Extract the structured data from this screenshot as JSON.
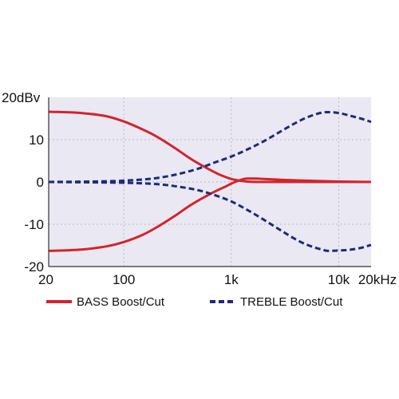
{
  "colors": {
    "plot_background": "#e9e8f3",
    "grid": "#b8b8c0",
    "axis": "#333333",
    "bass": "#d4242c",
    "treble": "#1f2a7a"
  },
  "chart_data": {
    "type": "line",
    "title": "",
    "xlabel": "",
    "ylabel": "",
    "x_scale": "log",
    "xlim": [
      20,
      20000
    ],
    "ylim": [
      -20,
      20
    ],
    "grid": true,
    "legend_position": "bottom",
    "x_ticks": [
      {
        "value": 20,
        "label": "20"
      },
      {
        "value": 100,
        "label": "100"
      },
      {
        "value": 1000,
        "label": "1k"
      },
      {
        "value": 10000,
        "label": "10k"
      },
      {
        "value": 20000,
        "label": "20kHz"
      }
    ],
    "y_ticks": [
      {
        "value": 20,
        "label": "20dBv"
      },
      {
        "value": 10,
        "label": "10"
      },
      {
        "value": 0,
        "label": "0"
      },
      {
        "value": -10,
        "label": "-10"
      },
      {
        "value": -20,
        "label": "-20"
      }
    ],
    "series": [
      {
        "name": "BASS Boost/Cut",
        "style": "solid",
        "color": "#d4242c",
        "curves": [
          {
            "x": [
              20,
              40,
              70,
              100,
              150,
              200,
              300,
              400,
              500,
              600,
              700,
              800,
              900,
              1000,
              1200,
              1400,
              1700,
              2000,
              3000,
              5000,
              10000,
              20000
            ],
            "y": [
              16.6,
              16.3,
              15.5,
              14.3,
              12.4,
              10.8,
              8.0,
              5.8,
              4.3,
              3.2,
              2.3,
              1.6,
              1.1,
              0.7,
              0.3,
              0.1,
              0.0,
              0.0,
              0.0,
              0.0,
              0.0,
              0.0
            ]
          },
          {
            "x": [
              20,
              40,
              70,
              100,
              150,
              200,
              300,
              400,
              500,
              600,
              700,
              800,
              900,
              1000,
              1200,
              1400,
              1700,
              2000,
              3000,
              5000,
              10000,
              20000
            ],
            "y": [
              -16.3,
              -16.0,
              -15.2,
              -14.2,
              -12.5,
              -10.8,
              -8.0,
              -5.8,
              -4.3,
              -3.2,
              -2.3,
              -1.6,
              -1.0,
              -0.4,
              0.4,
              0.8,
              0.8,
              0.7,
              0.5,
              0.3,
              0.1,
              0.0
            ]
          }
        ]
      },
      {
        "name": "TREBLE Boost/Cut",
        "style": "dashed",
        "color": "#1f2a7a",
        "curves": [
          {
            "x": [
              20,
              50,
              100,
              200,
              300,
              500,
              700,
              1000,
              1500,
              2000,
              3000,
              4000,
              5000,
              7000,
              8000,
              10000,
              13000,
              16000,
              20000
            ],
            "y": [
              0.0,
              0.1,
              0.3,
              0.9,
              1.7,
              3.2,
              4.6,
              6.0,
              8.0,
              9.6,
              12.2,
              14.0,
              15.2,
              16.4,
              16.5,
              16.3,
              15.6,
              15.0,
              14.2
            ]
          },
          {
            "x": [
              20,
              50,
              100,
              200,
              300,
              500,
              700,
              1000,
              1500,
              2000,
              3000,
              4000,
              5000,
              7000,
              8000,
              10000,
              13000,
              16000,
              20000
            ],
            "y": [
              0.0,
              -0.1,
              -0.2,
              -0.5,
              -1.0,
              -2.0,
              -3.1,
              -4.6,
              -7.0,
              -8.9,
              -11.7,
              -13.6,
              -14.8,
              -16.0,
              -16.3,
              -16.2,
              -16.0,
              -15.6,
              -14.9
            ]
          }
        ]
      }
    ]
  }
}
